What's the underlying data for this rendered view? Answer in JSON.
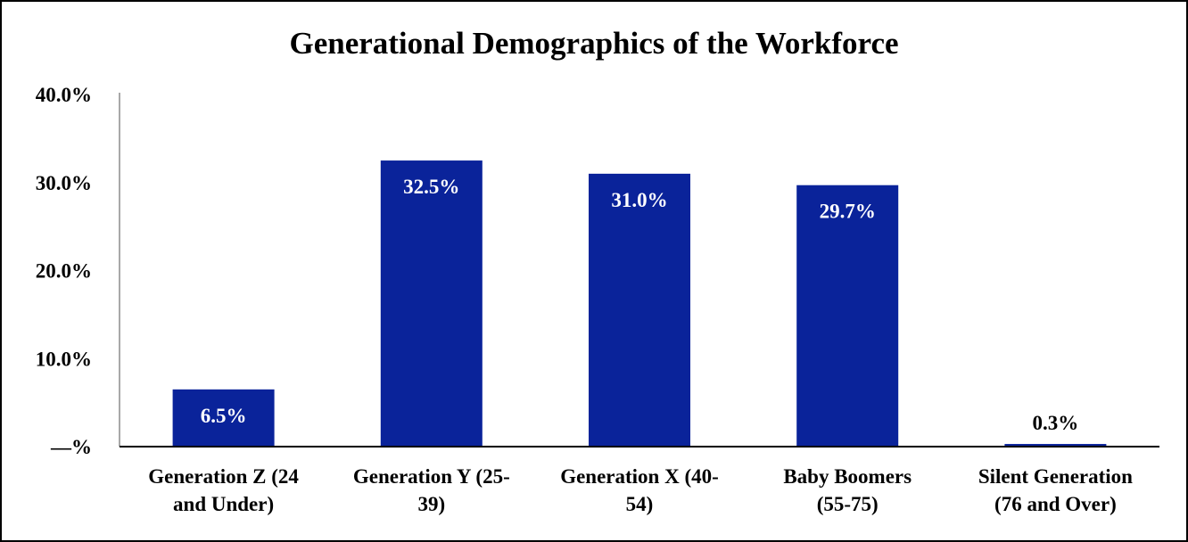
{
  "chart_data": {
    "type": "bar",
    "title": "Generational Demographics of the Workforce",
    "xlabel": "",
    "ylabel": "",
    "ylim": [
      0,
      40
    ],
    "yticks": [
      0,
      10,
      20,
      30,
      40
    ],
    "ytick_labels": [
      "—%",
      "10.0%",
      "20.0%",
      "30.0%",
      "40.0%"
    ],
    "categories": [
      [
        "Generation Z (24",
        "and Under)"
      ],
      [
        "Generation Y (25-",
        "39)"
      ],
      [
        "Generation X (40-",
        "54)"
      ],
      [
        "Baby Boomers",
        "(55-75)"
      ],
      [
        "Silent Generation",
        "(76 and Over)"
      ]
    ],
    "values": [
      6.5,
      32.5,
      31.0,
      29.7,
      0.3
    ],
    "data_labels": [
      "6.5%",
      "32.5%",
      "31.0%",
      "29.7%",
      "0.3%"
    ],
    "grid": false,
    "legend": "none",
    "colors": {
      "bar": "#0A239A",
      "label_inside": "#FFFFFF",
      "label_outside": "#000000",
      "axis": "#000000",
      "frame": "#000000"
    }
  }
}
